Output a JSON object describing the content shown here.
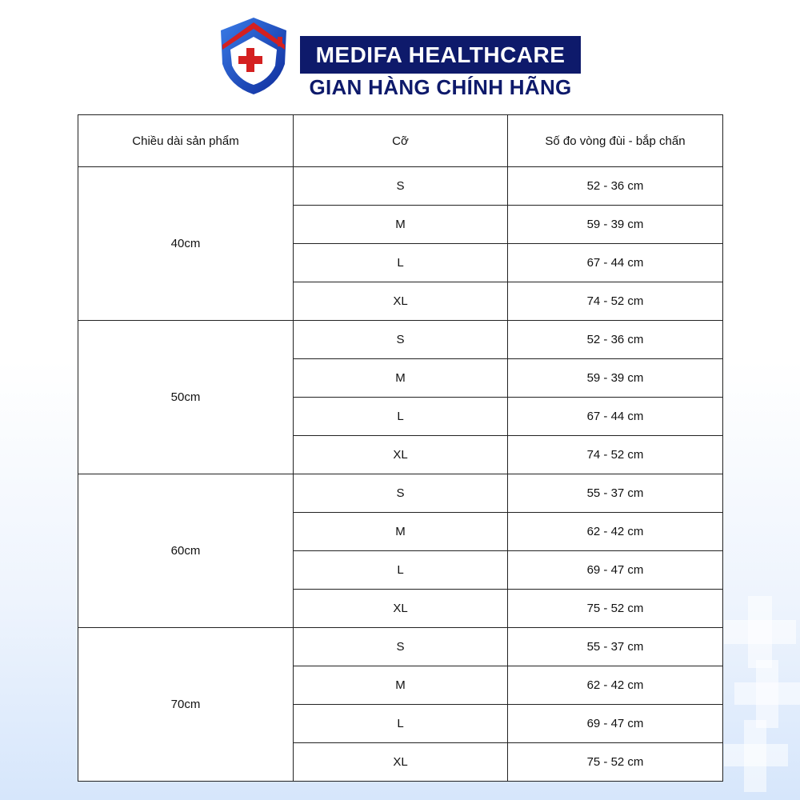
{
  "brand": {
    "name": "MEDIFA HEALTHCARE",
    "tagline": "GIAN HÀNG CHÍNH HÃNG",
    "primary_color": "#0e1a6b",
    "accent_color": "#d42020"
  },
  "table": {
    "headers": [
      "Chiều dài sản phẩm",
      "Cỡ",
      "Số đo vòng đùi - bắp chấn"
    ],
    "groups": [
      {
        "length": "40cm",
        "rows": [
          {
            "size": "S",
            "measure": "52 - 36 cm"
          },
          {
            "size": "M",
            "measure": "59 - 39 cm"
          },
          {
            "size": "L",
            "measure": "67 - 44 cm"
          },
          {
            "size": "XL",
            "measure": "74 - 52 cm"
          }
        ]
      },
      {
        "length": "50cm",
        "rows": [
          {
            "size": "S",
            "measure": "52 - 36 cm"
          },
          {
            "size": "M",
            "measure": "59 - 39 cm"
          },
          {
            "size": "L",
            "measure": "67 - 44 cm"
          },
          {
            "size": "XL",
            "measure": "74 - 52 cm"
          }
        ]
      },
      {
        "length": "60cm",
        "rows": [
          {
            "size": "S",
            "measure": "55 - 37 cm"
          },
          {
            "size": "M",
            "measure": "62 - 42 cm"
          },
          {
            "size": "L",
            "measure": "69 - 47 cm"
          },
          {
            "size": "XL",
            "measure": "75 - 52 cm"
          }
        ]
      },
      {
        "length": "70cm",
        "rows": [
          {
            "size": "S",
            "measure": "55 - 37 cm"
          },
          {
            "size": "M",
            "measure": "62 - 42 cm"
          },
          {
            "size": "L",
            "measure": "69 - 47 cm"
          },
          {
            "size": "XL",
            "measure": "75 - 52 cm"
          }
        ]
      }
    ]
  }
}
